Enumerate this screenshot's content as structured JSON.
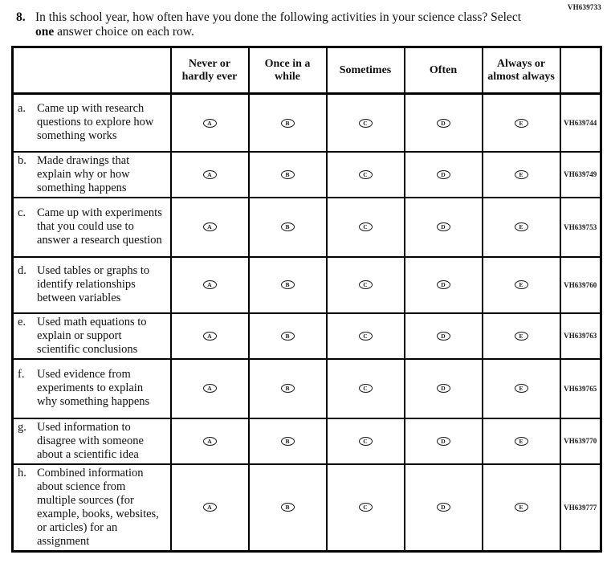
{
  "page": {
    "top_right_code": "VH639733"
  },
  "question": {
    "number": "8.",
    "text_before_bold": "In this school year, how often have you done the following activities in your science class? Select ",
    "bold_word": "one",
    "text_after_bold": " answer choice on each row."
  },
  "table": {
    "columns": [
      "Never or hardly ever",
      "Once in a while",
      "Sometimes",
      "Often",
      "Always or almost always"
    ],
    "options": [
      "A",
      "B",
      "C",
      "D",
      "E"
    ],
    "rows": [
      {
        "letter": "a.",
        "text": "Came up with research questions to explore how something works",
        "code": "VH639744"
      },
      {
        "letter": "b.",
        "text": "Made drawings that explain why or how something happens",
        "code": "VH639749"
      },
      {
        "letter": "c.",
        "text": "Came up with experiments that you could use to answer a research question",
        "code": "VH639753"
      },
      {
        "letter": "d.",
        "text": "Used tables or graphs to identify relationships between variables",
        "code": "VH639760"
      },
      {
        "letter": "e.",
        "text": "Used math equations to explain or support scientific conclusions",
        "code": "VH639763"
      },
      {
        "letter": "f.",
        "text": "Used evidence from experiments to explain why something happens",
        "code": "VH639765"
      },
      {
        "letter": "g.",
        "text": "Used information to disagree with someone about a scientific idea",
        "code": "VH639770"
      },
      {
        "letter": "h.",
        "text": "Combined information about science from multiple sources (for example, books, websites, or articles) for an assignment",
        "code": "VH639777"
      }
    ]
  }
}
